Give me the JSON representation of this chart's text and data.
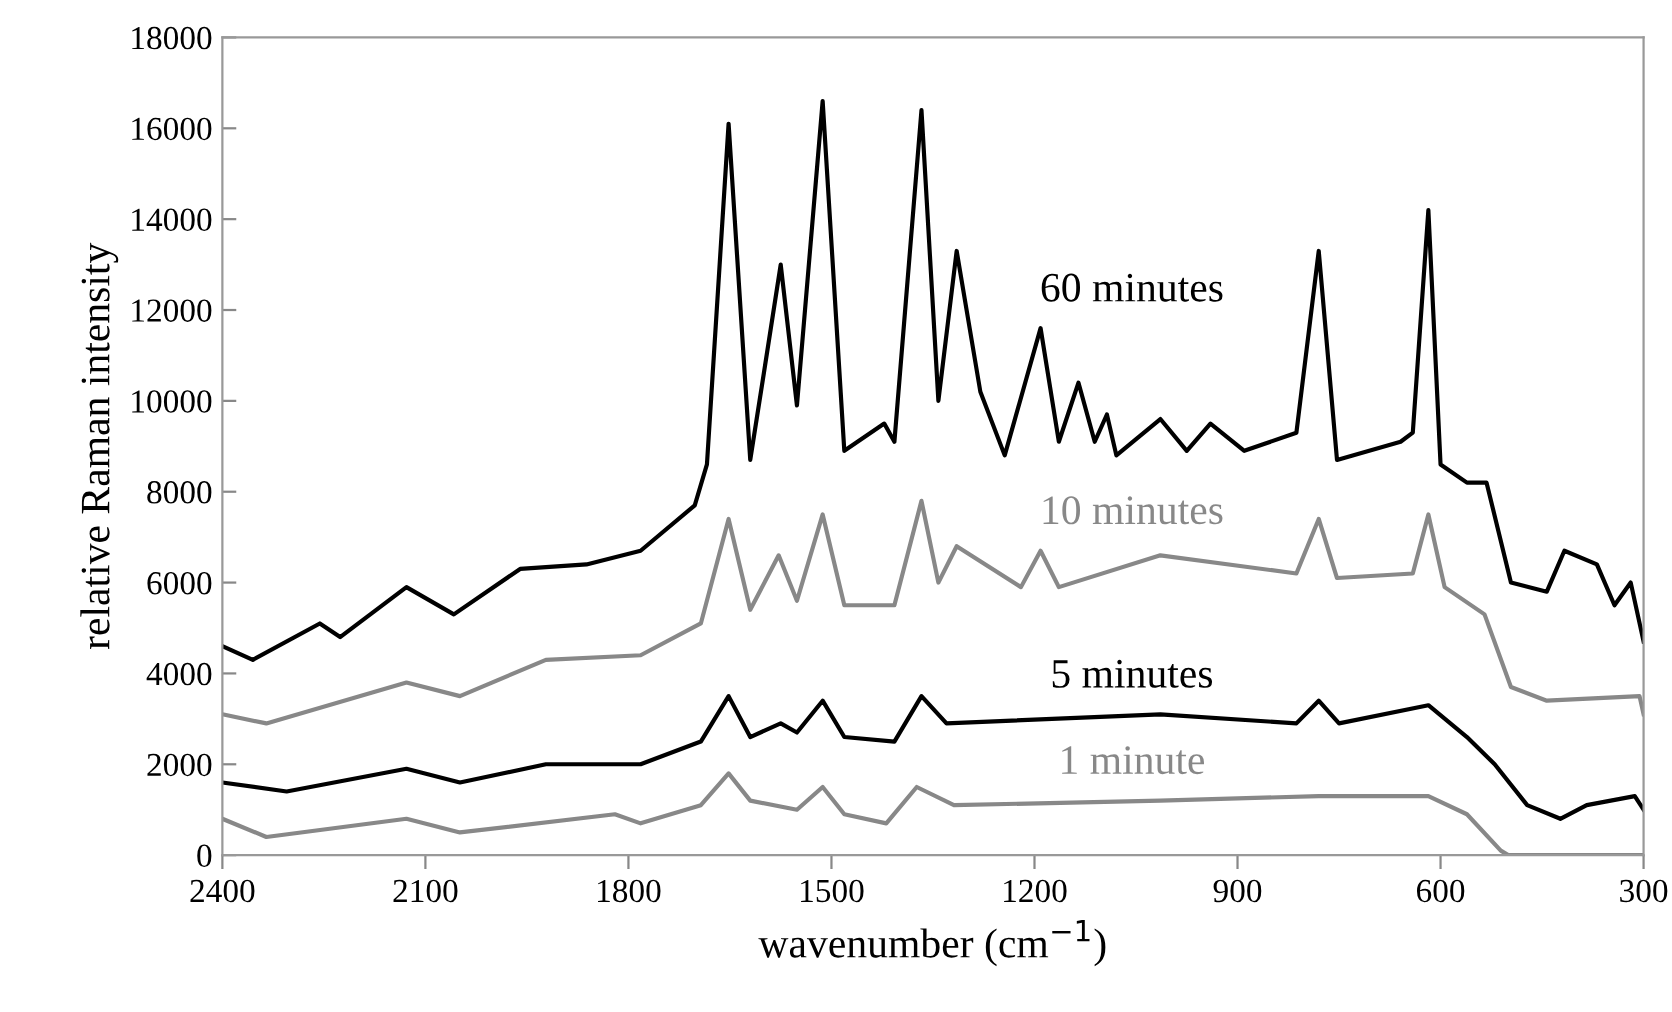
{
  "chart_data": {
    "type": "line",
    "xlabel": "wavenumber (cm$^{−1}$)",
    "ylabel": "relative Raman intensity",
    "xlim": [
      2400,
      300
    ],
    "xticks": [
      2400,
      2100,
      1800,
      1500,
      1200,
      900,
      600,
      300
    ],
    "ylim": [
      0,
      18000
    ],
    "yticks": [
      0,
      2000,
      4000,
      6000,
      8000,
      10000,
      12000,
      14000,
      16000,
      18000
    ],
    "grid": false,
    "legend": false,
    "marker": "none",
    "line_style": "solid",
    "series": [
      {
        "name": "60 minutes",
        "color": "#000000",
        "x": [
          2400,
          2355,
          2256,
          2226,
          2128,
          2058,
          1960,
          1862,
          1782,
          1702,
          1684,
          1652,
          1620,
          1600,
          1575,
          1551,
          1513,
          1481,
          1422,
          1407,
          1367,
          1342,
          1315,
          1280,
          1244,
          1191,
          1164,
          1135,
          1111,
          1093,
          1079,
          1014,
          975,
          940,
          890,
          813,
          780,
          753,
          659,
          641,
          618,
          600,
          561,
          532,
          496,
          443,
          417,
          369,
          343,
          319,
          300
        ],
        "values": [
          4600,
          4300,
          5100,
          4800,
          5900,
          5300,
          6300,
          6400,
          6700,
          7700,
          8600,
          16100,
          8700,
          10600,
          13000,
          9900,
          16600,
          8900,
          9500,
          9100,
          16400,
          10000,
          13300,
          10200,
          8800,
          11600,
          9100,
          10400,
          9100,
          9700,
          8800,
          9600,
          8900,
          9500,
          8900,
          9300,
          13300,
          8700,
          9100,
          9300,
          14200,
          8600,
          8200,
          8200,
          6000,
          5800,
          6700,
          6400,
          5500,
          6000,
          4700
        ]
      },
      {
        "name": "10 minutes",
        "color": "#888888",
        "x": [
          2400,
          2335,
          2128,
          2049,
          1922,
          1782,
          1693,
          1652,
          1620,
          1578,
          1551,
          1513,
          1481,
          1407,
          1367,
          1342,
          1315,
          1220,
          1191,
          1164,
          1014,
          813,
          780,
          753,
          641,
          618,
          594,
          535,
          496,
          443,
          306,
          300
        ],
        "values": [
          3100,
          2900,
          3800,
          3500,
          4300,
          4400,
          5100,
          7400,
          5400,
          6600,
          5600,
          7500,
          5500,
          5500,
          7800,
          6000,
          6800,
          5900,
          6700,
          5900,
          6600,
          6200,
          7400,
          6100,
          6200,
          7500,
          5900,
          5300,
          3700,
          3400,
          3500,
          3100
        ]
      },
      {
        "name": "5 minutes",
        "color": "#000000",
        "x": [
          2400,
          2305,
          2128,
          2049,
          1922,
          1782,
          1693,
          1652,
          1620,
          1575,
          1551,
          1513,
          1481,
          1407,
          1367,
          1330,
          1014,
          813,
          780,
          750,
          618,
          561,
          520,
          472,
          423,
          384,
          313,
          300
        ],
        "values": [
          1600,
          1400,
          1900,
          1600,
          2000,
          2000,
          2500,
          3500,
          2600,
          2900,
          2700,
          3400,
          2600,
          2500,
          3500,
          2900,
          3100,
          2900,
          3400,
          2900,
          3300,
          2600,
          2000,
          1100,
          800,
          1100,
          1300,
          1000
        ]
      },
      {
        "name": "1 minute",
        "color": "#888888",
        "x": [
          2400,
          2335,
          2128,
          2049,
          1820,
          1782,
          1693,
          1652,
          1620,
          1551,
          1513,
          1481,
          1419,
          1374,
          1319,
          1014,
          780,
          618,
          561,
          511,
          500,
          300
        ],
        "values": [
          800,
          400,
          800,
          500,
          900,
          700,
          1100,
          1800,
          1200,
          1000,
          1500,
          900,
          700,
          1500,
          1100,
          1200,
          1300,
          1300,
          900,
          100,
          0,
          0
        ]
      }
    ]
  }
}
